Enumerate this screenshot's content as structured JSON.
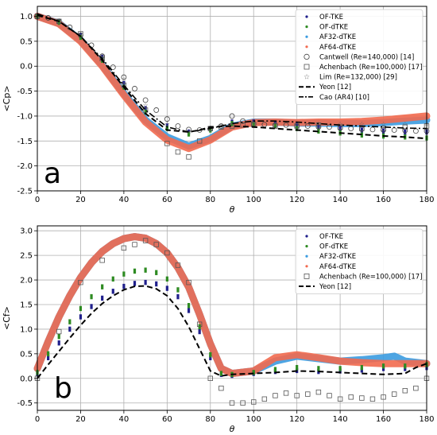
{
  "chart_data": [
    {
      "type": "scatter",
      "panel_label": "a",
      "xlabel": "θ",
      "ylabel": "<Cp>",
      "xlim": [
        0,
        180
      ],
      "ylim": [
        -2.5,
        1.2
      ],
      "xticks": [
        0,
        20,
        40,
        60,
        80,
        100,
        120,
        140,
        160,
        180
      ],
      "yticks": [
        1.0,
        0.5,
        0.0,
        -0.5,
        -1.0,
        -1.5,
        -2.0,
        -2.5
      ],
      "grid": true,
      "legend_position": "top-right",
      "series": [
        {
          "name": "OF-TKE",
          "style": "dots",
          "color": "#1f1f8c",
          "x": [
            0,
            10,
            20,
            30,
            40,
            50,
            60,
            70,
            80,
            90,
            100,
            110,
            120,
            130,
            140,
            150,
            160,
            170,
            180
          ],
          "y": [
            1.0,
            0.9,
            0.62,
            0.18,
            -0.35,
            -0.85,
            -1.2,
            -1.32,
            -1.25,
            -1.12,
            -1.12,
            -1.14,
            -1.18,
            -1.22,
            -1.25,
            -1.28,
            -1.3,
            -1.32,
            -1.32
          ]
        },
        {
          "name": "OF-dTKE",
          "style": "dots",
          "color": "#2e8b22",
          "x": [
            0,
            10,
            20,
            30,
            40,
            50,
            60,
            70,
            80,
            90,
            100,
            110,
            120,
            130,
            140,
            150,
            160,
            170,
            180
          ],
          "y": [
            1.0,
            0.88,
            0.58,
            0.12,
            -0.42,
            -0.92,
            -1.25,
            -1.36,
            -1.28,
            -1.15,
            -1.16,
            -1.2,
            -1.25,
            -1.3,
            -1.34,
            -1.38,
            -1.4,
            -1.42,
            -1.44
          ]
        },
        {
          "name": "AF32-dTKE",
          "style": "band",
          "color": "#3b9be0",
          "x": [
            0,
            10,
            20,
            30,
            40,
            50,
            60,
            70,
            80,
            90,
            100,
            110,
            120,
            130,
            140,
            150,
            160,
            170,
            180
          ],
          "y": [
            1.0,
            0.86,
            0.52,
            0.02,
            -0.55,
            -1.08,
            -1.42,
            -1.6,
            -1.45,
            -1.2,
            -1.12,
            -1.12,
            -1.14,
            -1.14,
            -1.15,
            -1.15,
            -1.13,
            -1.1,
            -1.08
          ]
        },
        {
          "name": "AF64-dTKE",
          "style": "band",
          "color": "#f26a4f",
          "x": [
            0,
            10,
            20,
            30,
            40,
            50,
            60,
            70,
            80,
            90,
            100,
            110,
            120,
            130,
            140,
            150,
            160,
            170,
            180
          ],
          "y": [
            1.0,
            0.85,
            0.5,
            0.0,
            -0.58,
            -1.12,
            -1.48,
            -1.65,
            -1.48,
            -1.22,
            -1.13,
            -1.12,
            -1.13,
            -1.12,
            -1.12,
            -1.11,
            -1.08,
            -1.04,
            -1.0
          ]
        },
        {
          "name": "Cantwell (Re=140,000) [14]",
          "style": "circles",
          "x": [
            0,
            5,
            10,
            15,
            20,
            25,
            30,
            35,
            40,
            45,
            50,
            55,
            60,
            65,
            70,
            75,
            80,
            85,
            90,
            95,
            100,
            105,
            110,
            115,
            120,
            125,
            130,
            135,
            140,
            145,
            150,
            155,
            160,
            165,
            170,
            175,
            180
          ],
          "y": [
            1.0,
            0.97,
            0.9,
            0.78,
            0.62,
            0.42,
            0.2,
            -0.02,
            -0.22,
            -0.45,
            -0.68,
            -0.88,
            -1.06,
            -1.2,
            -1.27,
            -1.28,
            -1.25,
            -1.2,
            -1.0,
            -1.1,
            -1.16,
            -1.17,
            -1.18,
            -1.18,
            -1.2,
            -1.2,
            -1.22,
            -1.22,
            -1.24,
            -1.25,
            -1.26,
            -1.27,
            -1.28,
            -1.28,
            -1.29,
            -1.3,
            -1.3
          ]
        },
        {
          "name": "Achenbach (Re=100,000) [17]",
          "style": "squares",
          "x": [
            0,
            10,
            20,
            30,
            40,
            50,
            60,
            65,
            70,
            75,
            80,
            85,
            90,
            95,
            100,
            110,
            120,
            130,
            140,
            150,
            160,
            170,
            180
          ],
          "y": [
            1.0,
            0.9,
            0.65,
            0.15,
            -0.38,
            -0.88,
            -1.55,
            -1.72,
            -1.82,
            -1.5,
            -1.25,
            -1.22,
            -1.2,
            -1.18,
            -1.17,
            -1.2,
            -1.2,
            -1.18,
            -1.22,
            -1.25,
            -1.25,
            -1.22,
            -1.2
          ]
        },
        {
          "name": "Lim (Re=132,000) [29]",
          "style": "stars",
          "x": [
            0,
            10,
            20,
            30,
            40,
            50,
            60,
            70,
            80,
            90,
            100,
            110,
            120,
            130,
            140,
            150,
            160,
            170,
            180
          ],
          "y": [
            1.0,
            0.92,
            0.66,
            0.22,
            -0.25,
            -0.78,
            -1.15,
            -1.3,
            -1.25,
            -1.18,
            -1.15,
            -1.15,
            -1.15,
            -1.15,
            -1.15,
            -1.15,
            -1.15,
            -1.15,
            -1.15
          ]
        },
        {
          "name": "Yeon [12]",
          "style": "dashed",
          "x": [
            0,
            10,
            20,
            30,
            40,
            50,
            60,
            70,
            75,
            80,
            90,
            100,
            110,
            120,
            130,
            140,
            150,
            160,
            170,
            180
          ],
          "y": [
            1.02,
            0.9,
            0.6,
            0.12,
            -0.42,
            -0.95,
            -1.28,
            -1.32,
            -1.28,
            -1.22,
            -1.2,
            -1.22,
            -1.25,
            -1.28,
            -1.31,
            -1.34,
            -1.37,
            -1.4,
            -1.42,
            -1.45
          ]
        },
        {
          "name": "Cao (AR4) [10]",
          "style": "dashdot",
          "x": [
            0,
            10,
            20,
            30,
            40,
            50,
            60,
            70,
            80,
            90,
            100,
            110,
            120,
            130,
            140,
            150,
            160,
            170,
            180
          ],
          "y": [
            1.05,
            0.9,
            0.6,
            0.15,
            -0.38,
            -0.88,
            -1.22,
            -1.32,
            -1.25,
            -1.15,
            -1.1,
            -1.1,
            -1.12,
            -1.15,
            -1.18,
            -1.2,
            -1.22,
            -1.24,
            -1.25
          ]
        }
      ]
    },
    {
      "type": "scatter",
      "panel_label": "b",
      "xlabel": "θ",
      "ylabel": "<Cf>",
      "xlim": [
        0,
        180
      ],
      "ylim": [
        -0.65,
        3.1
      ],
      "xticks": [
        0,
        20,
        40,
        60,
        80,
        100,
        120,
        140,
        160,
        180
      ],
      "yticks": [
        3.0,
        2.5,
        2.0,
        1.5,
        1.0,
        0.5,
        0.0,
        -0.5
      ],
      "grid": true,
      "legend_position": "top-right",
      "series": [
        {
          "name": "OF-TKE",
          "style": "dots",
          "color": "#1f1f8c",
          "x": [
            0,
            5,
            10,
            15,
            20,
            25,
            30,
            35,
            40,
            45,
            50,
            55,
            60,
            65,
            70,
            75,
            80,
            85,
            90,
            100,
            110,
            120,
            130,
            140,
            150,
            160,
            170,
            180
          ],
          "y": [
            0.1,
            0.42,
            0.72,
            1.0,
            1.25,
            1.46,
            1.63,
            1.77,
            1.87,
            1.93,
            1.95,
            1.92,
            1.83,
            1.66,
            1.38,
            0.95,
            0.42,
            0.08,
            0.06,
            0.1,
            0.14,
            0.16,
            0.14,
            0.15,
            0.17,
            0.2,
            0.2,
            0.22
          ]
        },
        {
          "name": "OF-dTKE",
          "style": "dots",
          "color": "#2e8b22",
          "x": [
            0,
            5,
            10,
            15,
            20,
            25,
            30,
            35,
            40,
            45,
            50,
            55,
            60,
            65,
            70,
            75,
            80,
            85,
            90,
            100,
            110,
            120,
            130,
            140,
            150,
            160,
            170,
            180
          ],
          "y": [
            0.12,
            0.5,
            0.85,
            1.15,
            1.42,
            1.66,
            1.86,
            2.02,
            2.12,
            2.18,
            2.2,
            2.15,
            2.02,
            1.8,
            1.48,
            1.05,
            0.48,
            0.1,
            0.08,
            0.12,
            0.18,
            0.22,
            0.2,
            0.2,
            0.22,
            0.25,
            0.25,
            0.28
          ]
        },
        {
          "name": "AF32-dTKE",
          "style": "band",
          "color": "#3b9be0",
          "x": [
            0,
            5,
            10,
            15,
            20,
            25,
            30,
            35,
            40,
            45,
            50,
            55,
            60,
            65,
            70,
            75,
            80,
            85,
            90,
            100,
            110,
            120,
            130,
            140,
            150,
            160,
            165,
            170,
            180
          ],
          "y": [
            0.2,
            0.75,
            1.25,
            1.68,
            2.05,
            2.35,
            2.58,
            2.74,
            2.84,
            2.88,
            2.85,
            2.74,
            2.55,
            2.25,
            1.85,
            1.3,
            0.7,
            0.2,
            0.1,
            0.15,
            0.35,
            0.45,
            0.4,
            0.35,
            0.38,
            0.42,
            0.45,
            0.35,
            0.3
          ]
        },
        {
          "name": "AF64-dTKE",
          "style": "band",
          "color": "#f26a4f",
          "x": [
            0,
            5,
            10,
            15,
            20,
            25,
            30,
            35,
            40,
            45,
            50,
            55,
            60,
            65,
            70,
            75,
            80,
            85,
            90,
            100,
            110,
            120,
            130,
            140,
            150,
            160,
            170,
            180
          ],
          "y": [
            0.2,
            0.75,
            1.25,
            1.68,
            2.05,
            2.35,
            2.58,
            2.74,
            2.84,
            2.88,
            2.85,
            2.74,
            2.55,
            2.25,
            1.85,
            1.3,
            0.7,
            0.2,
            0.1,
            0.15,
            0.42,
            0.48,
            0.42,
            0.35,
            0.32,
            0.3,
            0.3,
            0.3
          ]
        },
        {
          "name": "Achenbach (Re=100,000) [17]",
          "style": "squares",
          "x": [
            0,
            10,
            20,
            30,
            40,
            45,
            50,
            55,
            60,
            65,
            70,
            75,
            80,
            85,
            90,
            95,
            100,
            105,
            110,
            115,
            120,
            125,
            130,
            135,
            140,
            145,
            150,
            155,
            160,
            165,
            170,
            175,
            180
          ],
          "y": [
            0.0,
            0.95,
            1.95,
            2.4,
            2.65,
            2.72,
            2.8,
            2.72,
            2.55,
            2.3,
            1.95,
            1.1,
            0.0,
            -0.2,
            -0.5,
            -0.5,
            -0.48,
            -0.42,
            -0.35,
            -0.3,
            -0.35,
            -0.32,
            -0.28,
            -0.35,
            -0.42,
            -0.38,
            -0.4,
            -0.42,
            -0.38,
            -0.32,
            -0.25,
            -0.2,
            0.0
          ]
        },
        {
          "name": "Yeon [12]",
          "style": "dashed",
          "x": [
            0,
            5,
            10,
            15,
            20,
            25,
            30,
            35,
            40,
            45,
            50,
            55,
            60,
            65,
            70,
            75,
            80,
            85,
            90,
            100,
            110,
            120,
            130,
            140,
            150,
            160,
            170,
            175,
            180
          ],
          "y": [
            0.0,
            0.28,
            0.55,
            0.82,
            1.08,
            1.32,
            1.52,
            1.68,
            1.8,
            1.87,
            1.88,
            1.82,
            1.68,
            1.42,
            1.05,
            0.6,
            0.15,
            0.05,
            0.08,
            0.1,
            0.12,
            0.15,
            0.14,
            0.12,
            0.1,
            0.08,
            0.1,
            0.22,
            0.3
          ]
        }
      ]
    }
  ]
}
